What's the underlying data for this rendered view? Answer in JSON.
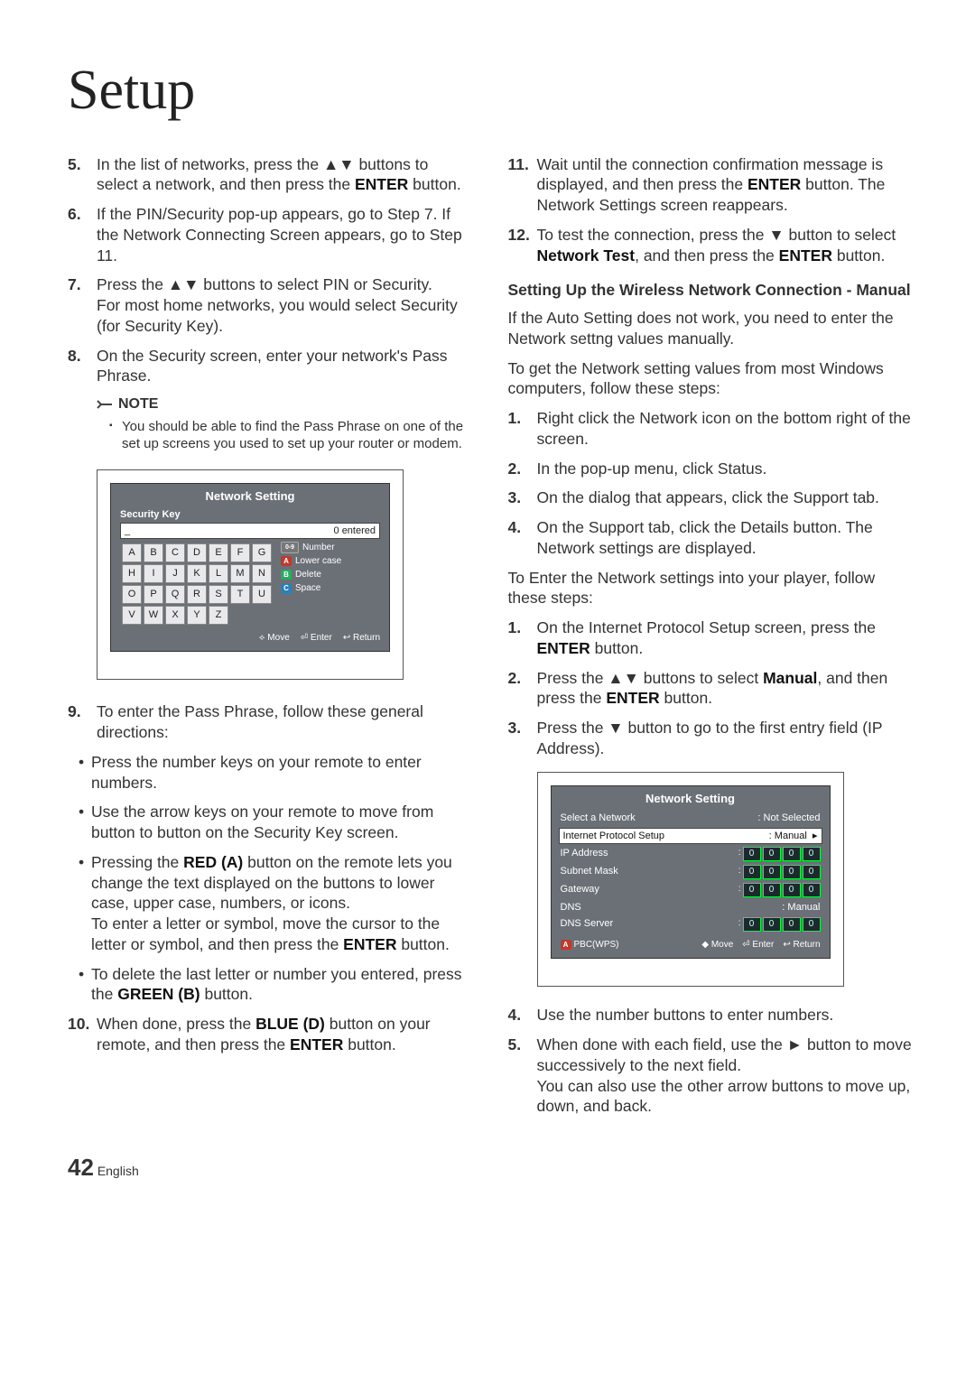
{
  "title": "Setup",
  "left": {
    "items": [
      {
        "n": "5.",
        "html": "In the list of networks, press the ▲▼ buttons to select a network, and then press the <b>ENTER</b> button."
      },
      {
        "n": "6.",
        "html": "If the PIN/Security pop-up appears, go to Step 7. If the Network Connecting Screen appears, go to Step 11."
      },
      {
        "n": "7.",
        "html": "Press the ▲▼ buttons to select PIN or Security.<br>For most home networks, you would select Security (for Security Key)."
      },
      {
        "n": "8.",
        "html": "On the Security screen, enter your network's Pass Phrase."
      }
    ],
    "note_label": "NOTE",
    "note": "You should be able to find the Pass Phrase on one of the set up screens you used to set up your router or modem.",
    "items2": [
      {
        "n": "9.",
        "html": "To enter the Pass Phrase, follow these general directions:"
      }
    ],
    "bullets": [
      "Press the number keys on your remote to enter numbers.",
      "Use the arrow keys on your remote to move from button to button on the Security Key screen.",
      "Pressing the <b>RED (A)</b> button on the remote lets you change the text displayed on the buttons to lower case, upper case, numbers, or icons.<br>To enter a letter or symbol, move the cursor to the letter or symbol, and then press the <b>ENTER</b> button.",
      "To delete the last letter or number you entered, press the <b>GREEN (B)</b> button."
    ],
    "items3": [
      {
        "n": "10.",
        "html": "When done, press the <b>BLUE (D)</b> button on your remote, and then press the <b>ENTER</b> button."
      }
    ]
  },
  "right": {
    "items": [
      {
        "n": "11.",
        "html": "Wait until the connection confirmation message is displayed, and then press the <b>ENTER</b> button. The Network Settings screen reappears."
      },
      {
        "n": "12.",
        "html": "To test the connection, press the ▼ button to select <b>Network Test</b>, and then press the <b>ENTER</b> button."
      }
    ],
    "heading": "Setting Up the Wireless Network Connection - Manual",
    "p1": "If the Auto Setting does not work, you need to enter the Network settng values manually.",
    "p2": "To get the Network setting values from most Windows computers, follow these steps:",
    "listA": [
      {
        "n": "1.",
        "html": "Right click the Network icon on the bottom right of the screen."
      },
      {
        "n": "2.",
        "html": "In the pop-up menu, click Status."
      },
      {
        "n": "3.",
        "html": "On the dialog that appears, click the Support tab."
      },
      {
        "n": "4.",
        "html": "On the Support tab, click the Details button. The Network settings are displayed."
      }
    ],
    "p3": "To Enter the Network settings into your player, follow these steps:",
    "listB": [
      {
        "n": "1.",
        "html": "On the Internet Protocol Setup screen, press the <b>ENTER</b> button."
      },
      {
        "n": "2.",
        "html": "Press the ▲▼ buttons to select <b>Manual</b>, and then press the <b>ENTER</b> button."
      },
      {
        "n": "3.",
        "html": "Press the ▼ button to go to the first entry field (IP Address)."
      }
    ],
    "listC": [
      {
        "n": "4.",
        "html": "Use the number buttons to enter numbers."
      },
      {
        "n": "5.",
        "html": "When done with each field, use the ► button to move successively to the next field.<br>You can also use the other arrow buttons to move up, down, and back."
      }
    ]
  },
  "ss1": {
    "title": "Network Setting",
    "sub": "Security Key",
    "cursor": "_",
    "entered": "0 entered",
    "rows": [
      [
        "A",
        "B",
        "C",
        "D",
        "E",
        "F",
        "G"
      ],
      [
        "H",
        "I",
        "J",
        "K",
        "L",
        "M",
        "N"
      ],
      [
        "O",
        "P",
        "Q",
        "R",
        "S",
        "T",
        "U"
      ],
      [
        "V",
        "W",
        "X",
        "Y",
        "Z",
        "",
        ""
      ]
    ],
    "side": [
      {
        "cls": "badge-09",
        "k": "0-9",
        "t": "Number"
      },
      {
        "cls": "badge-a",
        "k": "A",
        "t": "Lower case"
      },
      {
        "cls": "badge-b",
        "k": "B",
        "t": "Delete"
      },
      {
        "cls": "badge-c",
        "k": "C",
        "t": "Space"
      }
    ],
    "bottom": [
      "⟡ Move",
      "⏎ Enter",
      "↩ Return"
    ]
  },
  "ss2": {
    "title": "Network Setting",
    "rows": [
      {
        "l": "Select a Network",
        "r": ": Not Selected",
        "sel": false
      },
      {
        "l": "Internet Protocol Setup",
        "r": ": Manual",
        "sel": true,
        "arrow": true
      },
      {
        "l": "IP Address",
        "ip": true
      },
      {
        "l": "Subnet Mask",
        "ip": true
      },
      {
        "l": "Gateway",
        "ip": true
      },
      {
        "l": "DNS",
        "r": ": Manual"
      },
      {
        "l": "DNS Server",
        "ip": true
      }
    ],
    "bottom_left": "PBC(WPS)",
    "bottom": [
      "◆ Move",
      "⏎ Enter",
      "↩ Return"
    ]
  },
  "footer": {
    "page": "42",
    "lang": "English"
  }
}
